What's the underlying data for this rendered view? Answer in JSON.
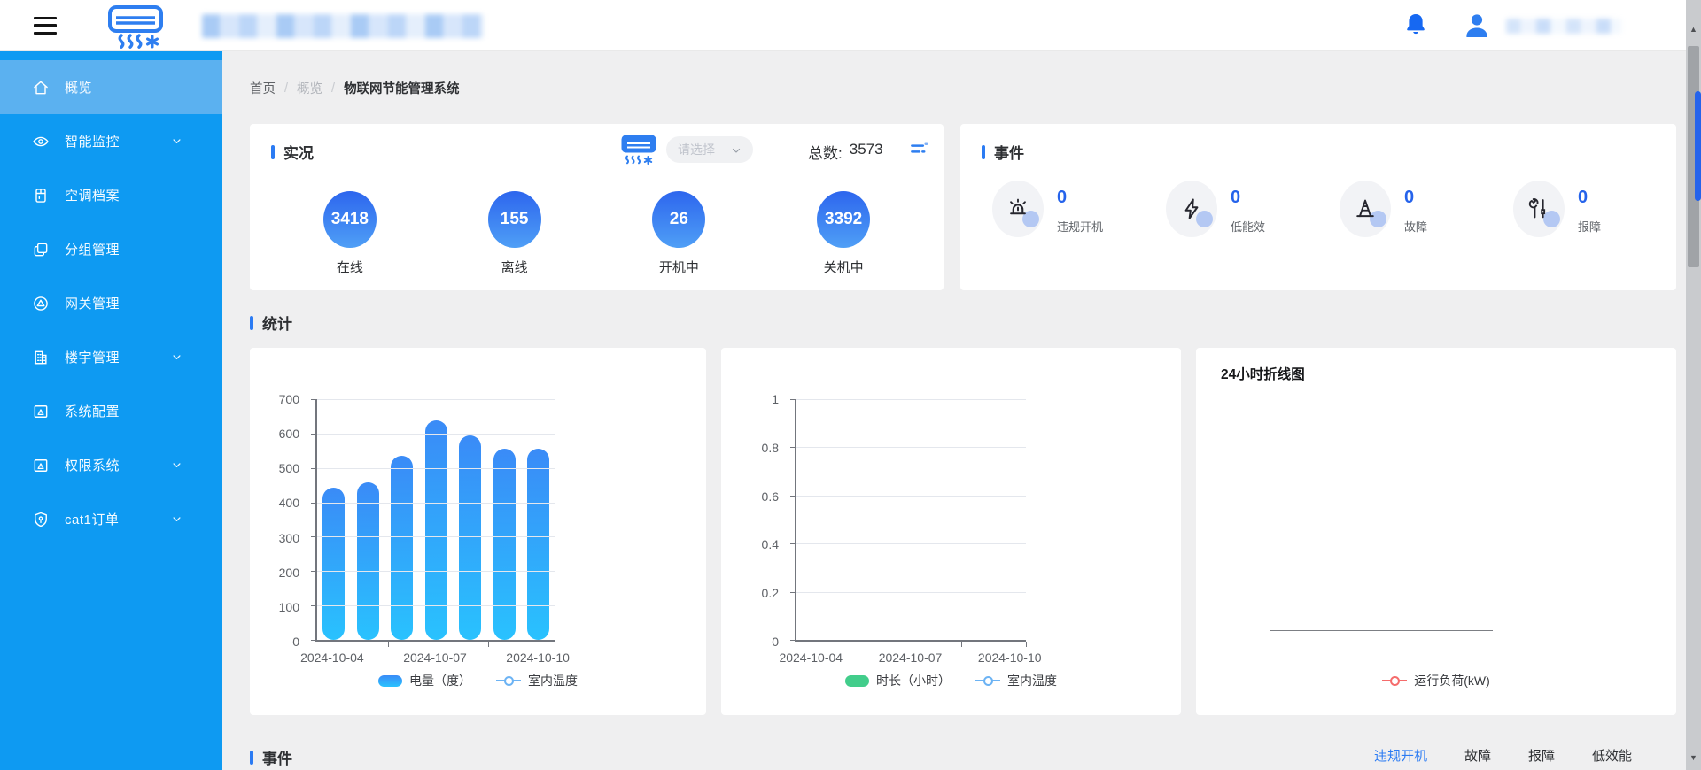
{
  "accent": "#2b7bf3",
  "colors": {
    "sidebar_bg": "#0e9af2",
    "sidebar_active_bg": "#5bb1f0",
    "event_value": "#2563eb",
    "bubble_top": "#2d66ee",
    "bubble_bottom": "#4f9ff6"
  },
  "header": {
    "logo_icon": "air-conditioner-icon",
    "notification_icon": "bell-icon",
    "user_icon": "person-icon"
  },
  "sidebar": {
    "items": [
      {
        "label": "概览",
        "icon": "home-icon",
        "active": true,
        "expandable": false
      },
      {
        "label": "智能监控",
        "icon": "eye-icon",
        "active": false,
        "expandable": true
      },
      {
        "label": "空调档案",
        "icon": "cabinet-icon",
        "active": false,
        "expandable": false
      },
      {
        "label": "分组管理",
        "icon": "copy-icon",
        "active": false,
        "expandable": false
      },
      {
        "label": "网关管理",
        "icon": "gateway-icon",
        "active": false,
        "expandable": false
      },
      {
        "label": "楼宇管理",
        "icon": "building-icon",
        "active": false,
        "expandable": true
      },
      {
        "label": "系统配置",
        "icon": "window-warning-icon",
        "active": false,
        "expandable": false
      },
      {
        "label": "权限系统",
        "icon": "window-warning-icon",
        "active": false,
        "expandable": true
      },
      {
        "label": "cat1订单",
        "icon": "shield-key-icon",
        "active": false,
        "expandable": true
      }
    ]
  },
  "breadcrumb": {
    "separator": "/",
    "items": [
      {
        "label": "首页",
        "style": "normal"
      },
      {
        "label": "概览",
        "style": "dim"
      },
      {
        "label": "物联网节能管理系统",
        "style": "current"
      }
    ]
  },
  "live": {
    "title": "实况",
    "device_icon": "air-conditioner-icon",
    "select_placeholder": "请选择",
    "total_label": "总数:",
    "total_value": "3573",
    "filter_icon": "list-filter-icon",
    "stats": [
      {
        "value": "3418",
        "label": "在线"
      },
      {
        "value": "155",
        "label": "离线"
      },
      {
        "value": "26",
        "label": "开机中"
      },
      {
        "value": "3392",
        "label": "关机中"
      }
    ]
  },
  "events_card": {
    "title": "事件",
    "items": [
      {
        "value": "0",
        "label": "违规开机",
        "icon": "siren-icon"
      },
      {
        "value": "0",
        "label": "低能效",
        "icon": "lightning-icon"
      },
      {
        "value": "0",
        "label": "故障",
        "icon": "cone-icon"
      },
      {
        "value": "0",
        "label": "报障",
        "icon": "tools-icon"
      }
    ]
  },
  "stats_section": {
    "title": "统计"
  },
  "chart_data": [
    {
      "type": "bar",
      "categories": [
        "2024-10-04",
        "2024-10-05",
        "2024-10-06",
        "2024-10-07",
        "2024-10-08",
        "2024-10-09",
        "2024-10-10"
      ],
      "series": [
        {
          "name": "电量（度）",
          "type": "bar",
          "values": [
            442,
            457,
            536,
            638,
            595,
            557,
            557
          ],
          "color_top": "#3a8bf7",
          "color_bottom": "#29c2fe"
        },
        {
          "name": "室内温度",
          "type": "line",
          "values": [],
          "color": "#6cb3f4"
        }
      ],
      "ylim": [
        0,
        700
      ],
      "ystep": 100,
      "x_tick_labels": [
        "2024-10-04",
        "2024-10-07",
        "2024-10-10"
      ],
      "grid": true,
      "legend_position": "bottom"
    },
    {
      "type": "bar",
      "categories": [
        "2024-10-04",
        "2024-10-05",
        "2024-10-06",
        "2024-10-07",
        "2024-10-08",
        "2024-10-09",
        "2024-10-10"
      ],
      "series": [
        {
          "name": "时长（小时）",
          "type": "bar",
          "values": [],
          "color": "#42cd8b"
        },
        {
          "name": "室内温度",
          "type": "line",
          "values": [],
          "color": "#6cb3f4"
        }
      ],
      "ylim": [
        0,
        1
      ],
      "ystep": 0.2,
      "x_tick_labels": [
        "2024-10-04",
        "2024-10-07",
        "2024-10-10"
      ],
      "grid": true,
      "legend_position": "bottom"
    },
    {
      "type": "line",
      "title": "24小时折线图",
      "series": [
        {
          "name": "运行负荷(kW)",
          "type": "line",
          "values": [],
          "color": "#f56c6c"
        }
      ],
      "bare_axes": true,
      "legend_position": "bottom"
    }
  ],
  "bottom_events": {
    "title": "事件",
    "tabs": [
      {
        "label": "违规开机",
        "active": true
      },
      {
        "label": "故障",
        "active": false
      },
      {
        "label": "报障",
        "active": false
      },
      {
        "label": "低效能",
        "active": false
      }
    ]
  }
}
